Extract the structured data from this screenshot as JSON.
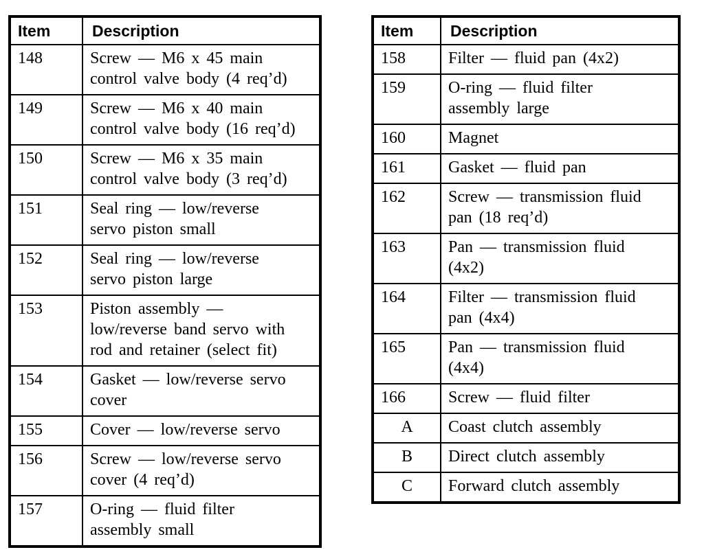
{
  "page": {
    "background": "#ffffff",
    "text_color": "#000000",
    "border_color": "#000000"
  },
  "tables": [
    {
      "id": "left-parts-table",
      "headers": {
        "item": "Item",
        "description": "Description"
      },
      "rows": [
        {
          "item": "148",
          "description_lines": [
            "Screw — M6 x 45 main",
            "control valve body (4 req’d)"
          ]
        },
        {
          "item": "149",
          "description_lines": [
            "Screw — M6 x 40 main",
            "control valve body (16 req’d)"
          ]
        },
        {
          "item": "150",
          "description_lines": [
            "Screw — M6 x 35 main",
            "control valve body (3 req’d)"
          ]
        },
        {
          "item": "151",
          "description_lines": [
            "Seal ring — low/reverse",
            "servo piston small"
          ]
        },
        {
          "item": "152",
          "description_lines": [
            "Seal ring — low/reverse",
            "servo piston large"
          ]
        },
        {
          "item": "153",
          "description_lines": [
            "Piston assembly —",
            "low/reverse band servo with",
            "rod and retainer (select fit)"
          ]
        },
        {
          "item": "154",
          "description_lines": [
            "Gasket — low/reverse servo",
            "cover"
          ]
        },
        {
          "item": "155",
          "description_lines": [
            "Cover — low/reverse servo"
          ]
        },
        {
          "item": "156",
          "description_lines": [
            "Screw — low/reverse servo",
            "cover (4 req’d)"
          ]
        },
        {
          "item": "157",
          "description_lines": [
            "O-ring — fluid filter",
            "assembly small"
          ]
        }
      ]
    },
    {
      "id": "right-parts-table",
      "headers": {
        "item": "Item",
        "description": "Description"
      },
      "rows": [
        {
          "item": "158",
          "description_lines": [
            "Filter — fluid pan (4x2)"
          ]
        },
        {
          "item": "159",
          "description_lines": [
            "O-ring — fluid filter",
            "assembly large"
          ]
        },
        {
          "item": "160",
          "description_lines": [
            "Magnet"
          ]
        },
        {
          "item": "161",
          "description_lines": [
            "Gasket — fluid pan"
          ]
        },
        {
          "item": "162",
          "description_lines": [
            "Screw — transmission fluid",
            "pan (18 req’d)"
          ]
        },
        {
          "item": "163",
          "description_lines": [
            "Pan — transmission fluid",
            "(4x2)"
          ]
        },
        {
          "item": "164",
          "description_lines": [
            "Filter — transmission fluid",
            "pan (4x4)"
          ]
        },
        {
          "item": "165",
          "description_lines": [
            "Pan — transmission fluid",
            "(4x4)"
          ]
        },
        {
          "item": "166",
          "description_lines": [
            "Screw — fluid filter"
          ]
        },
        {
          "item": "A",
          "description_lines": [
            "Coast clutch assembly"
          ]
        },
        {
          "item": "B",
          "description_lines": [
            "Direct clutch assembly"
          ]
        },
        {
          "item": "C",
          "description_lines": [
            "Forward clutch assembly"
          ]
        }
      ]
    }
  ]
}
